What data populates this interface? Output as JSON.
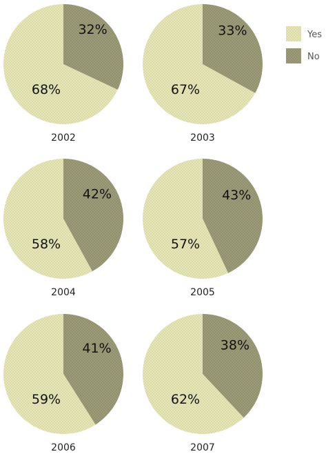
{
  "chart_data": {
    "type": "pie",
    "legend": {
      "placement": "top-right",
      "entries": [
        {
          "label": "Yes",
          "color": "#e4e4b4"
        },
        {
          "label": "No",
          "color": "#9b9b78"
        }
      ]
    },
    "charts": [
      {
        "title": "2002",
        "slices": [
          {
            "label": "Yes",
            "value": 68,
            "text": "68%"
          },
          {
            "label": "No",
            "value": 32,
            "text": "32%"
          }
        ]
      },
      {
        "title": "2003",
        "slices": [
          {
            "label": "Yes",
            "value": 67,
            "text": "67%"
          },
          {
            "label": "No",
            "value": 33,
            "text": "33%"
          }
        ]
      },
      {
        "title": "2004",
        "slices": [
          {
            "label": "Yes",
            "value": 58,
            "text": "58%"
          },
          {
            "label": "No",
            "value": 42,
            "text": "42%"
          }
        ]
      },
      {
        "title": "2005",
        "slices": [
          {
            "label": "Yes",
            "value": 57,
            "text": "57%"
          },
          {
            "label": "No",
            "value": 43,
            "text": "43%"
          }
        ]
      },
      {
        "title": "2006",
        "slices": [
          {
            "label": "Yes",
            "value": 59,
            "text": "59%"
          },
          {
            "label": "No",
            "value": 41,
            "text": "41%"
          }
        ]
      },
      {
        "title": "2007",
        "slices": [
          {
            "label": "Yes",
            "value": 62,
            "text": "62%"
          },
          {
            "label": "No",
            "value": 38,
            "text": "38%"
          }
        ]
      }
    ]
  }
}
